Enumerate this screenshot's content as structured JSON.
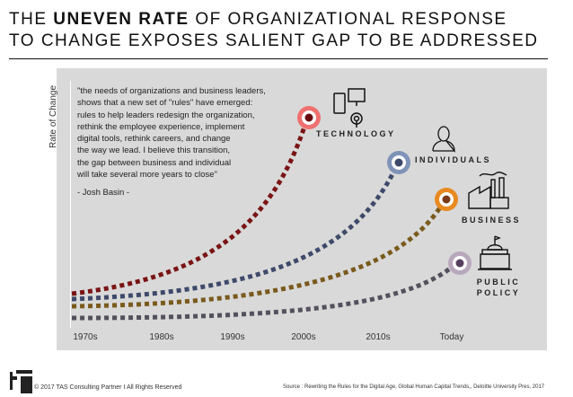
{
  "title": {
    "pre": "THE ",
    "bold": "UNEVEN RATE",
    "post": " OF ORGANIZATIONAL RESPONSE",
    "line2": "TO CHANGE EXPOSES SALIENT GAP TO BE ADDRESSED"
  },
  "y_axis_label": "Rate of Change",
  "quote": "\"the needs of organizations and business leaders,\nshows that a new set of \"rules\" have emerged:\nrules to help leaders redesign the organization,\nrethink the employee experience, implement\ndigital tools, rethink careers, and change\nthe way we lead. I believe this transition,\nthe gap between business and individual\nwill take several more years to close\"",
  "quote_author": "- Josh Basin -",
  "x_ticks": [
    "1970s",
    "1980s",
    "1990s",
    "2000s",
    "2010s",
    "Today"
  ],
  "series": [
    {
      "name": "TECHNOLOGY",
      "icon": "devices-icon",
      "color": "#7a1414",
      "marker": "#f07070"
    },
    {
      "name": "INDIVIDUALS",
      "icon": "person-icon",
      "color": "#3e4a6a",
      "marker": "#7f93b8"
    },
    {
      "name": "BUSINESS",
      "icon": "factory-icon",
      "color": "#7a5a1c",
      "marker": "#e88a20"
    },
    {
      "name": "PUBLIC POLICY",
      "icon": "government-building-icon",
      "color": "#55505e",
      "marker": "#b8a8bc"
    }
  ],
  "footer": {
    "copyright": "© 2017 TAS Consulting Partner  I  All Rights Reserved",
    "source": "Source : Rewriting the Rules for the Digital Age, Global Human Capital Trends,, Deloitte University Pres, 2017"
  }
}
